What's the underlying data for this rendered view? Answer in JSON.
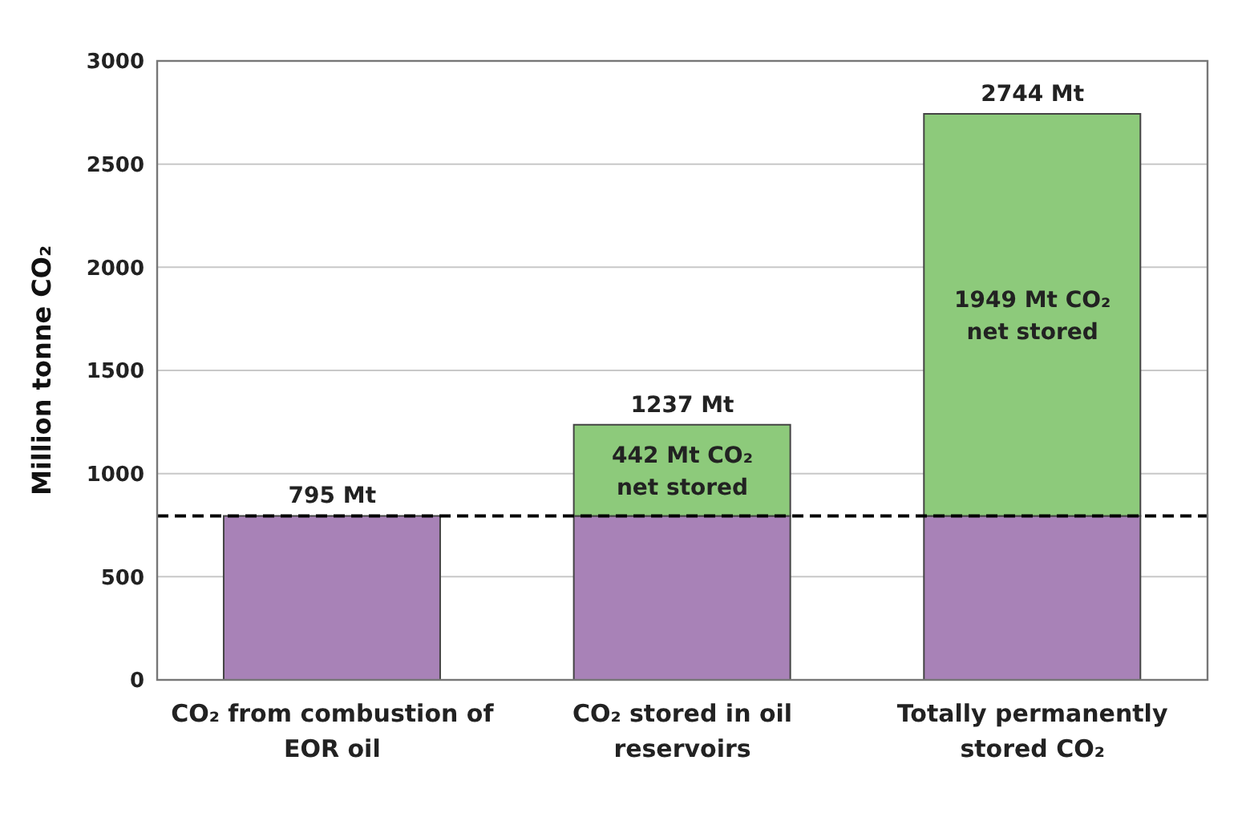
{
  "chart_data": {
    "type": "bar",
    "stacked": true,
    "ylabel": "Million tonne CO₂",
    "categories": [
      "CO₂ from combustion of EOR oil",
      "CO₂ stored in oil reservoirs",
      "Totally permanently stored CO₂"
    ],
    "series": [
      {
        "color": "#a882b7",
        "values": [
          795,
          795,
          795
        ]
      },
      {
        "color": "#8dca7b",
        "values": [
          0,
          442,
          1949
        ],
        "value_labels": [
          null,
          "442 Mt CO₂ net stored",
          "1949 Mt CO₂ net stored"
        ]
      }
    ],
    "totals": [
      "795 Mt",
      "1237 Mt",
      "2744 Mt"
    ],
    "ylim": [
      0,
      3000
    ],
    "yticks": [
      0,
      500,
      1000,
      1500,
      2000,
      2500,
      3000
    ],
    "grid": "y",
    "ref_lines": [
      {
        "axis": "y",
        "value": 795,
        "line_style": "dashed",
        "color": "#000000"
      }
    ]
  }
}
